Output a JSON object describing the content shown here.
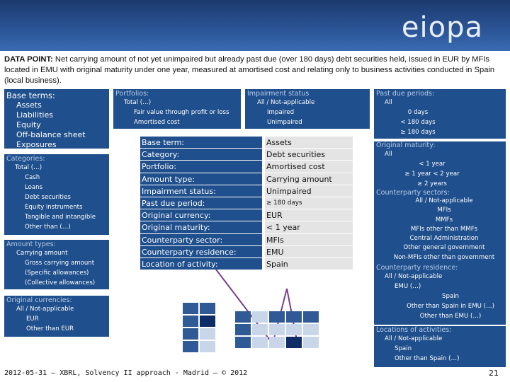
{
  "header": {
    "logo_text": "eiopa"
  },
  "datapoint": {
    "label": "DATA POINT:",
    "text": "Net carrying amount of not yet unimpaired but already past due (over 180 days) debt securities held, issued in EUR by MFIs located in EMU with original maturity under one year, measured at amortised cost and relating only to business activities conducted in Spain (local business)."
  },
  "base_terms": {
    "title": "Base terms:",
    "items": [
      "Assets",
      "Liabilities",
      "Equity",
      "Off-balance sheet",
      "Exposures"
    ]
  },
  "categories": {
    "title": "Categories:",
    "items": [
      "Total (…)",
      "Cash",
      "Loans",
      "Debt securities",
      "Equity instruments",
      "Tangible and intangible",
      "Other than (…)"
    ]
  },
  "amount_types": {
    "title": "Amount types:",
    "items": [
      "Carrying amount",
      "Gross carrying amount",
      "(Specific allowances)",
      "(Collective allowances)"
    ]
  },
  "original_currencies": {
    "title": "Original currencies:",
    "items": [
      "All / Not-applicable",
      "EUR",
      "Other than EUR"
    ]
  },
  "portfolios": {
    "title": "Portfolios:",
    "items": [
      "Total (…)",
      "Fair value through profit or loss",
      "Amortised cost"
    ]
  },
  "impairment_status": {
    "title": "Impairment status",
    "items": [
      "All / Not-applicable",
      "Impaired",
      "Unimpaired"
    ]
  },
  "past_due_periods": {
    "title": "Past due periods:",
    "items": [
      "All",
      "0 days",
      "< 180 days",
      "≥ 180 days"
    ]
  },
  "original_maturity": {
    "title": "Original maturity:",
    "items": [
      "All",
      "< 1 year",
      "≥ 1 year < 2 year",
      "≥ 2 years"
    ]
  },
  "counterparty_sectors": {
    "title": "Counterparty sectors:",
    "items": [
      "All / Not-applicable",
      "MFIs",
      "MMFs",
      "MFIs other than MMFs",
      "Central Administration",
      "Other general government",
      "Non-MFIs other than government"
    ]
  },
  "counterparty_residence": {
    "title": "Counterparty residence:",
    "items": [
      "All / Not-applicable",
      "EMU (…)",
      "Spain",
      "Other than Spain in EMU (…)",
      "Other than EMU (…)"
    ]
  },
  "locations_of_activities": {
    "title": "Locations of activities:",
    "items": [
      "All / Not-applicable",
      "Spain",
      "Other than Spain (…)"
    ]
  },
  "dimensions": [
    {
      "key": "Base term:",
      "value": "Assets"
    },
    {
      "key": "Category:",
      "value": "Debt securities"
    },
    {
      "key": "Portfolio:",
      "value": "Amortised cost"
    },
    {
      "key": "Amount type:",
      "value": "Carrying amount"
    },
    {
      "key": "Impairment status:",
      "value": "Unimpaired"
    },
    {
      "key": "Past due period:",
      "value": "≥ 180 days"
    },
    {
      "key": "Original currency:",
      "value": "EUR"
    },
    {
      "key": "Original maturity:",
      "value": "< 1 year"
    },
    {
      "key": "Counterparty sector:",
      "value": "MFIs"
    },
    {
      "key": "Counterparty residence:",
      "value": "EMU"
    },
    {
      "key": "Location of activity:",
      "value": "Spain"
    }
  ],
  "colors": {
    "panel": "#1f4f8c",
    "value_cell": "#e4e4e4",
    "grid_dark": "#2f5a95",
    "grid_light": "#c9d6ea",
    "grid_highlight": "#0e2d66",
    "connector": "#7a3f8e"
  },
  "footer": {
    "text": "2012-05-31 – XBRL, Solvency II approach - Madrid – © 2012",
    "page": "21"
  }
}
